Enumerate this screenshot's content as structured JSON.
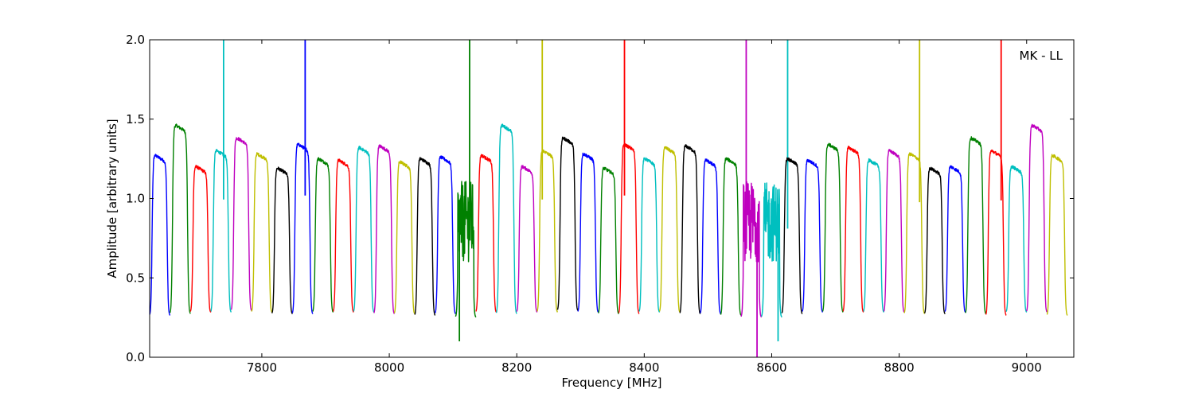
{
  "chart_data": {
    "type": "line",
    "title": "",
    "xlabel": "Frequency [MHz]",
    "ylabel": "Amplitude [arbitrary units]",
    "xlim": [
      7624,
      9074
    ],
    "ylim": [
      0.0,
      2.0
    ],
    "xticks": [
      7800,
      8000,
      8200,
      8400,
      8600,
      8800,
      9000
    ],
    "yticks": [
      0.0,
      0.5,
      1.0,
      1.5,
      2.0
    ],
    "xtick_labels": [
      "7800",
      "8000",
      "8200",
      "8400",
      "8600",
      "8800",
      "9000"
    ],
    "ytick_labels": [
      "0.0",
      "0.5",
      "1.0",
      "1.5",
      "2.0"
    ],
    "grid": false,
    "annotation": "MK - LL",
    "color_cycle": [
      "#0000ff",
      "#008000",
      "#ff0000",
      "#00bfbf",
      "#bf00bf",
      "#bfbf00",
      "#000000"
    ],
    "channel_width_mhz": 32,
    "series": [
      {
        "x0": 7624,
        "color": "#0000ff",
        "peak": 1.27,
        "edge": 0.26
      },
      {
        "x0": 7656,
        "color": "#008000",
        "peak": 1.46,
        "edge": 0.27
      },
      {
        "x0": 7688,
        "color": "#ff0000",
        "peak": 1.2,
        "edge": 0.28
      },
      {
        "x0": 7720,
        "color": "#00bfbf",
        "peak": 1.3,
        "edge": 0.28,
        "spike_x": 7740,
        "spike_y": 2.0
      },
      {
        "x0": 7752,
        "color": "#bf00bf",
        "peak": 1.38,
        "edge": 0.29
      },
      {
        "x0": 7784,
        "color": "#bfbf00",
        "peak": 1.28,
        "edge": 0.28
      },
      {
        "x0": 7816,
        "color": "#000000",
        "peak": 1.19,
        "edge": 0.27
      },
      {
        "x0": 7848,
        "color": "#0000ff",
        "peak": 1.34,
        "edge": 0.27,
        "spike_x": 7868,
        "spike_y": 2.0
      },
      {
        "x0": 7880,
        "color": "#008000",
        "peak": 1.25,
        "edge": 0.28
      },
      {
        "x0": 7912,
        "color": "#ff0000",
        "peak": 1.24,
        "edge": 0.28
      },
      {
        "x0": 7944,
        "color": "#00bfbf",
        "peak": 1.32,
        "edge": 0.28
      },
      {
        "x0": 7976,
        "color": "#bf00bf",
        "peak": 1.33,
        "edge": 0.27
      },
      {
        "x0": 8008,
        "color": "#bfbf00",
        "peak": 1.23,
        "edge": 0.27
      },
      {
        "x0": 8040,
        "color": "#000000",
        "peak": 1.25,
        "edge": 0.26
      },
      {
        "x0": 8072,
        "color": "#0000ff",
        "peak": 1.26,
        "edge": 0.27
      },
      {
        "x0": 8104,
        "color": "#008000",
        "peak": 1.06,
        "edge": 0.25,
        "noisy": true,
        "spike_x": 8126,
        "spike_y": 2.0,
        "dip_x": 8110,
        "dip_y": 0.1
      },
      {
        "x0": 8136,
        "color": "#ff0000",
        "peak": 1.27,
        "edge": 0.28
      },
      {
        "x0": 8168,
        "color": "#00bfbf",
        "peak": 1.46,
        "edge": 0.27
      },
      {
        "x0": 8200,
        "color": "#bf00bf",
        "peak": 1.2,
        "edge": 0.28
      },
      {
        "x0": 8232,
        "color": "#bfbf00",
        "peak": 1.3,
        "edge": 0.28,
        "spike_x": 8240,
        "spike_y": 2.0
      },
      {
        "x0": 8264,
        "color": "#000000",
        "peak": 1.38,
        "edge": 0.29
      },
      {
        "x0": 8296,
        "color": "#0000ff",
        "peak": 1.28,
        "edge": 0.28
      },
      {
        "x0": 8328,
        "color": "#008000",
        "peak": 1.19,
        "edge": 0.27
      },
      {
        "x0": 8360,
        "color": "#ff0000",
        "peak": 1.34,
        "edge": 0.27,
        "spike_x": 8369,
        "spike_y": 2.0
      },
      {
        "x0": 8392,
        "color": "#00bfbf",
        "peak": 1.25,
        "edge": 0.28
      },
      {
        "x0": 8424,
        "color": "#bfbf00",
        "peak": 1.32,
        "edge": 0.28
      },
      {
        "x0": 8456,
        "color": "#000000",
        "peak": 1.33,
        "edge": 0.27
      },
      {
        "x0": 8488,
        "color": "#0000ff",
        "peak": 1.24,
        "edge": 0.27
      },
      {
        "x0": 8520,
        "color": "#008000",
        "peak": 1.25,
        "edge": 0.26
      },
      {
        "x0": 8552,
        "color": "#bf00bf",
        "peak": 1.06,
        "edge": 0.25,
        "noisy": true,
        "spike_x": 8560,
        "spike_y": 2.0,
        "dip_x": 8577,
        "dip_y": 0.0
      },
      {
        "x0": 8584,
        "color": "#00bfbf",
        "peak": 1.05,
        "edge": 0.25,
        "noisy": true,
        "spike_x": 8625,
        "spike_y": 2.0,
        "dip_x": 8610,
        "dip_y": 0.1
      },
      {
        "x0": 8616,
        "color": "#000000",
        "peak": 1.25,
        "edge": 0.27
      },
      {
        "x0": 8648,
        "color": "#0000ff",
        "peak": 1.24,
        "edge": 0.28
      },
      {
        "x0": 8680,
        "color": "#008000",
        "peak": 1.34,
        "edge": 0.28
      },
      {
        "x0": 8712,
        "color": "#ff0000",
        "peak": 1.32,
        "edge": 0.28
      },
      {
        "x0": 8744,
        "color": "#00bfbf",
        "peak": 1.24,
        "edge": 0.28
      },
      {
        "x0": 8776,
        "color": "#bf00bf",
        "peak": 1.3,
        "edge": 0.28
      },
      {
        "x0": 8808,
        "color": "#bfbf00",
        "peak": 1.28,
        "edge": 0.27,
        "spike_x": 8832,
        "spike_y": 2.0
      },
      {
        "x0": 8840,
        "color": "#000000",
        "peak": 1.19,
        "edge": 0.27
      },
      {
        "x0": 8872,
        "color": "#0000ff",
        "peak": 1.2,
        "edge": 0.28
      },
      {
        "x0": 8904,
        "color": "#008000",
        "peak": 1.38,
        "edge": 0.27
      },
      {
        "x0": 8936,
        "color": "#ff0000",
        "peak": 1.3,
        "edge": 0.26,
        "spike_x": 8960,
        "spike_y": 2.0
      },
      {
        "x0": 8968,
        "color": "#00bfbf",
        "peak": 1.2,
        "edge": 0.28
      },
      {
        "x0": 9000,
        "color": "#bf00bf",
        "peak": 1.46,
        "edge": 0.28
      },
      {
        "x0": 9032,
        "color": "#bfbf00",
        "peak": 1.27,
        "edge": 0.26
      }
    ]
  }
}
